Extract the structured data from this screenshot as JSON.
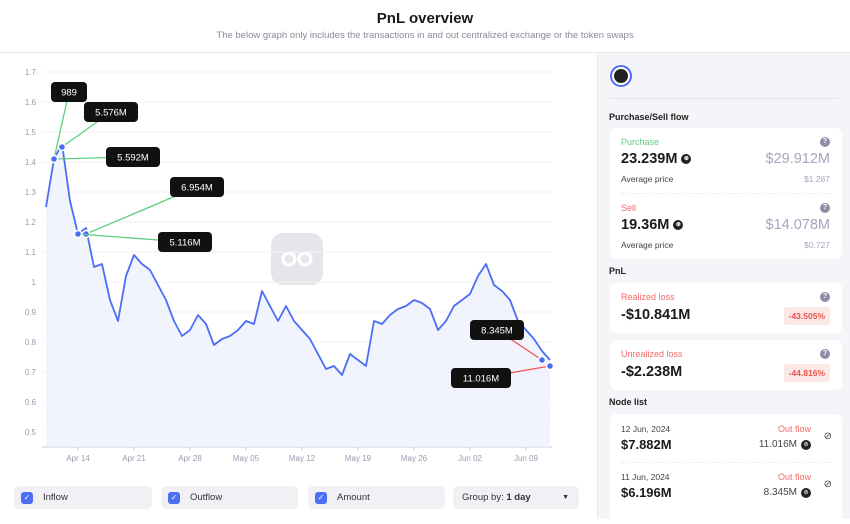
{
  "header": {
    "title": "PnL overview",
    "subtitle": "The below graph only includes the transactions in and out centralized exchange or the token swaps"
  },
  "watermark": "SPOTONCHAIN",
  "chart_data": {
    "type": "area",
    "title": "",
    "xlabel": "",
    "ylabel": "",
    "ylim": [
      0.45,
      1.7
    ],
    "yticks": [
      "1.7",
      "1.6",
      "1.5",
      "1.4",
      "1.3",
      "1.2",
      "1.1",
      "1",
      "0.9",
      "0.8",
      "0.7",
      "0.6",
      "0.5"
    ],
    "xticks": [
      "Apr 14",
      "Apr 21",
      "Apr 28",
      "May 05",
      "May 12",
      "May 19",
      "May 26",
      "Jun 02",
      "Jun 09"
    ],
    "x_start": "2024-04-10",
    "x_end": "2024-06-12",
    "grid": true,
    "colors": {
      "line": "#4c6ef5",
      "fill": "#eef0fd",
      "inflow": "#5fcf7f",
      "outflow": "#ef5b5b"
    },
    "values": [
      1.25,
      1.41,
      1.46,
      1.27,
      1.16,
      1.18,
      1.05,
      1.06,
      0.94,
      0.87,
      1.02,
      1.09,
      1.06,
      1.04,
      0.99,
      0.94,
      0.87,
      0.82,
      0.84,
      0.89,
      0.86,
      0.79,
      0.81,
      0.82,
      0.84,
      0.87,
      0.86,
      0.97,
      0.92,
      0.87,
      0.92,
      0.87,
      0.84,
      0.81,
      0.76,
      0.71,
      0.72,
      0.69,
      0.76,
      0.74,
      0.72,
      0.87,
      0.86,
      0.89,
      0.91,
      0.92,
      0.94,
      0.93,
      0.91,
      0.84,
      0.87,
      0.92,
      0.94,
      0.96,
      1.02,
      1.06,
      0.99,
      0.97,
      0.94,
      0.87,
      0.84,
      0.81,
      0.77,
      0.74
    ],
    "markers": [
      {
        "label": "989",
        "date": "2024-04-11",
        "price": 1.41,
        "type": "inflow"
      },
      {
        "label": "5.576M",
        "date": "2024-04-12",
        "price": 1.45,
        "type": "inflow"
      },
      {
        "label": "5.592M",
        "date": "2024-04-11",
        "price": 1.41,
        "type": "inflow"
      },
      {
        "label": "6.954M",
        "date": "2024-04-15",
        "price": 1.16,
        "type": "inflow"
      },
      {
        "label": "5.116M",
        "date": "2024-04-14",
        "price": 1.16,
        "type": "inflow"
      },
      {
        "label": "8.345M",
        "date": "2024-06-11",
        "price": 0.74,
        "type": "outflow"
      },
      {
        "label": "11.016M",
        "date": "2024-06-12",
        "price": 0.72,
        "type": "outflow"
      }
    ]
  },
  "controls": {
    "inflow": "Inflow",
    "outflow": "Outflow",
    "amount": "Amount",
    "group_prefix": "Group by:",
    "group_value": "1 day",
    "checked": true
  },
  "sidebar": {
    "flow_title": "Purchase/Sell flow",
    "purchase": {
      "label": "Purchase",
      "amount": "23.239M",
      "usd": "$29.912M",
      "avg_label": "Average price",
      "avg": "$1.287"
    },
    "sell": {
      "label": "Sell",
      "amount": "19.36M",
      "usd": "$14.078M",
      "avg_label": "Average price",
      "avg": "$0.727"
    },
    "pnl_title": "PnL",
    "realized": {
      "label": "Realized loss",
      "value": "-$10.841M",
      "pct": "-43.505%"
    },
    "unrealized": {
      "label": "Unrealized loss",
      "value": "-$2.238M",
      "pct": "-44.816%"
    },
    "node_title": "Node list",
    "nodes": [
      {
        "date": "12 Jun, 2024",
        "usd": "$7.882M",
        "type": "Out flow",
        "amount": "11.016M"
      },
      {
        "date": "11 Jun, 2024",
        "usd": "$6.196M",
        "type": "Out flow",
        "amount": "8.345M"
      }
    ]
  }
}
